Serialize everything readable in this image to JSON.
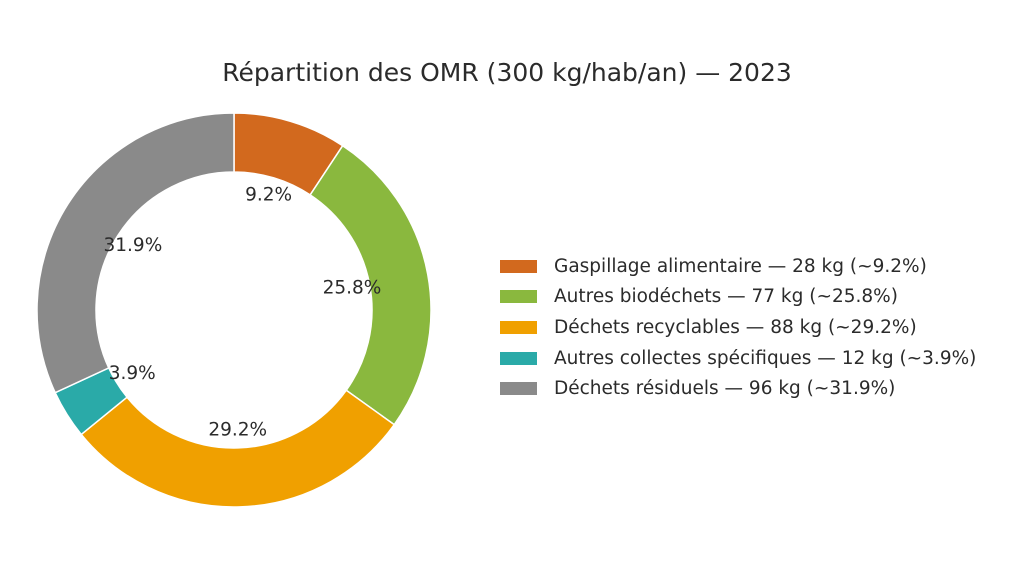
{
  "chart_data": {
    "type": "pie",
    "title": "Répartition des OMR (300 kg/hab/an) — 2023",
    "donut": true,
    "start": "top",
    "direction": "clockwise",
    "legend_position": "right",
    "slices": [
      {
        "label": "Gaspillage alimentaire — 28 kg (~9.2%)",
        "value": 28,
        "pct_label": "9.2%",
        "color": "#D2691E"
      },
      {
        "label": "Autres biodéchets — 77 kg (~25.8%)",
        "value": 77,
        "pct_label": "25.8%",
        "color": "#8AB83E"
      },
      {
        "label": "Déchets recyclables — 88 kg (~29.2%)",
        "value": 88,
        "pct_label": "29.2%",
        "color": "#F0A000"
      },
      {
        "label": "Autres collectes spécifiques — 12 kg (~3.9%)",
        "value": 12,
        "pct_label": "3.9%",
        "color": "#2AAAA8"
      },
      {
        "label": "Déchets résiduels — 96 kg (~31.9%)",
        "value": 96,
        "pct_label": "31.9%",
        "color": "#8A8A8A"
      }
    ]
  }
}
